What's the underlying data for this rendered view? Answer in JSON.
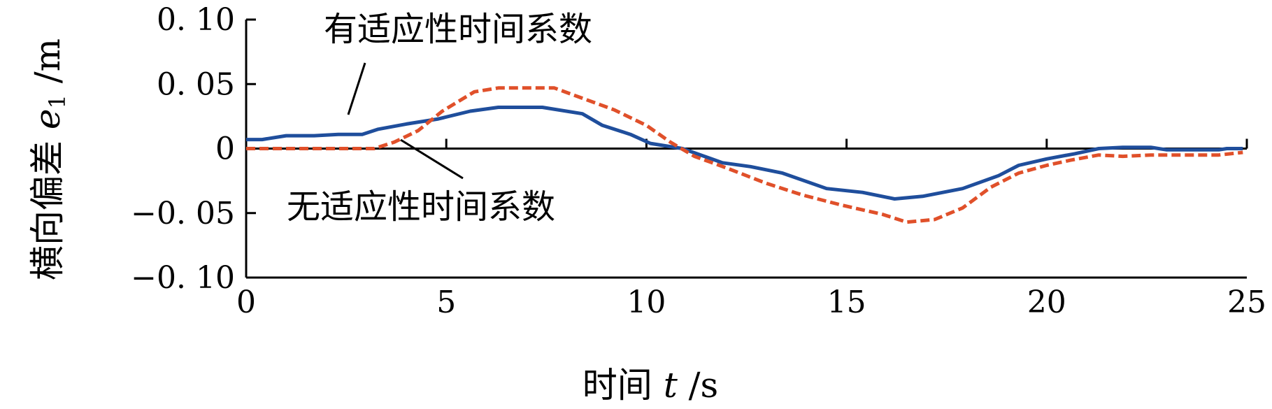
{
  "chart_data": {
    "type": "line",
    "xlabel": {
      "text": "时间",
      "var": "t",
      "unit": "s"
    },
    "ylabel": {
      "text": "横向偏差",
      "var": "e",
      "sub": "1",
      "unit": "m"
    },
    "xlim": [
      0,
      25
    ],
    "ylim": [
      -0.1,
      0.1
    ],
    "xticks": [
      {
        "v": 0,
        "label": "0"
      },
      {
        "v": 5,
        "label": "5"
      },
      {
        "v": 10,
        "label": "10"
      },
      {
        "v": 15,
        "label": "15"
      },
      {
        "v": 20,
        "label": "20"
      },
      {
        "v": 25,
        "label": "25"
      }
    ],
    "yticks": [
      {
        "v": 0.1,
        "label": "0. 10"
      },
      {
        "v": 0.05,
        "label": "0. 05"
      },
      {
        "v": 0,
        "label": "0"
      },
      {
        "v": -0.05,
        "label": "−0. 05"
      },
      {
        "v": -0.1,
        "label": "−0. 10"
      }
    ],
    "grid": false,
    "series": [
      {
        "name": "有适应性时间系数",
        "color": "#1f4e9c",
        "dash": "solid",
        "points": [
          [
            0,
            0.007
          ],
          [
            0.4,
            0.007
          ],
          [
            1,
            0.01
          ],
          [
            1.7,
            0.01
          ],
          [
            2.3,
            0.011
          ],
          [
            2.9,
            0.011
          ],
          [
            3.3,
            0.015
          ],
          [
            4,
            0.019
          ],
          [
            4.8,
            0.023
          ],
          [
            5.6,
            0.029
          ],
          [
            6.3,
            0.032
          ],
          [
            7.4,
            0.032
          ],
          [
            8.4,
            0.027
          ],
          [
            8.9,
            0.018
          ],
          [
            9.6,
            0.011
          ],
          [
            10.1,
            0.004
          ],
          [
            10.9,
            0.0
          ],
          [
            11.9,
            -0.011
          ],
          [
            12.6,
            -0.014
          ],
          [
            13.4,
            -0.019
          ],
          [
            14.5,
            -0.031
          ],
          [
            15.4,
            -0.034
          ],
          [
            16.2,
            -0.039
          ],
          [
            16.9,
            -0.037
          ],
          [
            17.9,
            -0.031
          ],
          [
            18.8,
            -0.021
          ],
          [
            19.3,
            -0.013
          ],
          [
            20,
            -0.008
          ],
          [
            20.7,
            -0.004
          ],
          [
            21.3,
            0.0
          ],
          [
            21.9,
            0.001
          ],
          [
            22.6,
            0.001
          ],
          [
            23,
            -0.001
          ],
          [
            24,
            -0.001
          ],
          [
            24.3,
            -0.001
          ],
          [
            24.5,
            0.0
          ],
          [
            24.9,
            0.0
          ]
        ]
      },
      {
        "name": "无适应性时间系数",
        "color": "#e0502a",
        "dash": "dashed",
        "points": [
          [
            0,
            0.0
          ],
          [
            0.5,
            0.0
          ],
          [
            1.5,
            0.0
          ],
          [
            2.5,
            0.0
          ],
          [
            3.2,
            0.0
          ],
          [
            3.7,
            0.005
          ],
          [
            4.3,
            0.014
          ],
          [
            4.9,
            0.029
          ],
          [
            5.7,
            0.044
          ],
          [
            6.3,
            0.047
          ],
          [
            7.7,
            0.047
          ],
          [
            8.4,
            0.039
          ],
          [
            9.2,
            0.03
          ],
          [
            10,
            0.018
          ],
          [
            10.6,
            0.005
          ],
          [
            11.2,
            -0.006
          ],
          [
            12,
            -0.015
          ],
          [
            13,
            -0.027
          ],
          [
            13.9,
            -0.036
          ],
          [
            14.9,
            -0.044
          ],
          [
            15.9,
            -0.051
          ],
          [
            16.5,
            -0.057
          ],
          [
            17.2,
            -0.055
          ],
          [
            17.9,
            -0.046
          ],
          [
            18.6,
            -0.03
          ],
          [
            19.3,
            -0.019
          ],
          [
            20,
            -0.013
          ],
          [
            20.6,
            -0.009
          ],
          [
            21.3,
            -0.005
          ],
          [
            21.9,
            -0.006
          ],
          [
            22.6,
            -0.005
          ],
          [
            23.5,
            -0.005
          ],
          [
            24.3,
            -0.005
          ],
          [
            24.9,
            -0.003
          ]
        ]
      }
    ],
    "annotations": [
      {
        "text": "有适应性时间系数",
        "series_index": 0
      },
      {
        "text": "无适应性时间系数",
        "series_index": 1
      }
    ]
  }
}
